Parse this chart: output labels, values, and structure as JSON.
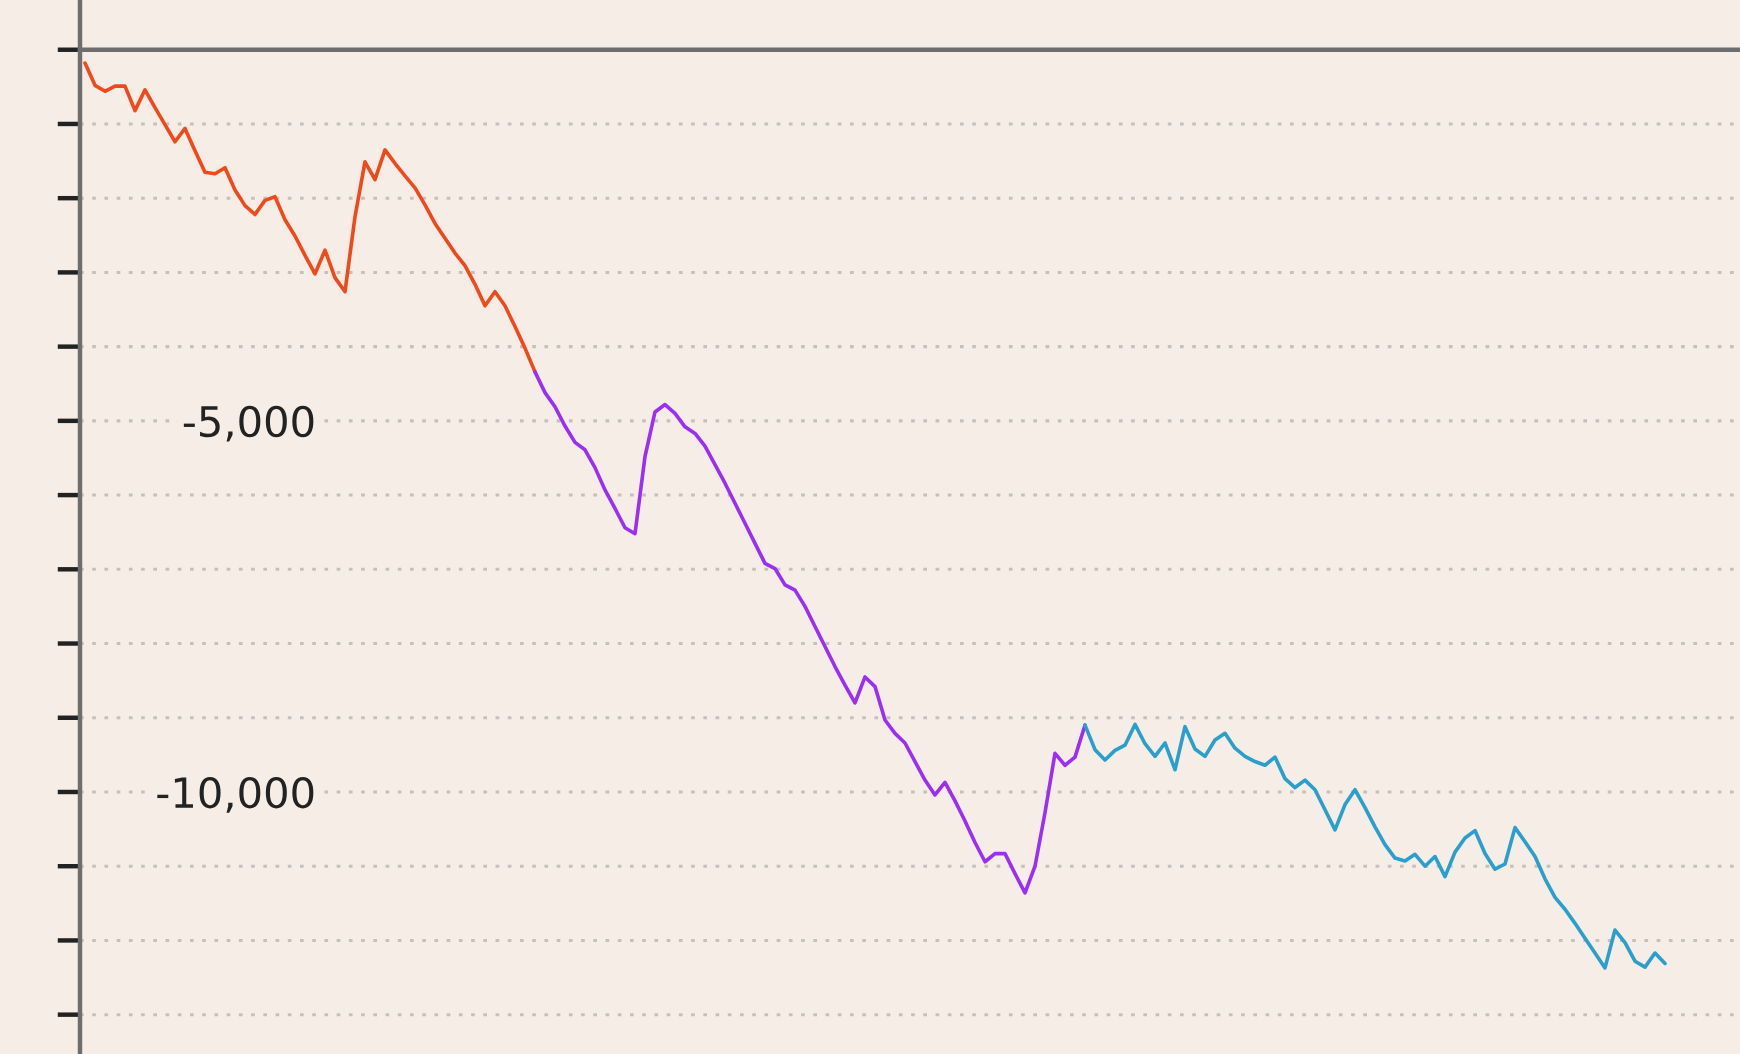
{
  "chart_data": {
    "type": "line",
    "categories": [
      null,
      null,
      null,
      null,
      null,
      null,
      null,
      null,
      null,
      null,
      null,
      null,
      null,
      null,
      null,
      null,
      null,
      null,
      null,
      null,
      null,
      null,
      null,
      null,
      null,
      null,
      null,
      null,
      null,
      null,
      null,
      null,
      null,
      null,
      null,
      null,
      null,
      null,
      null,
      null,
      null,
      null,
      null,
      null,
      null,
      null,
      null,
      null,
      null,
      null,
      null,
      null,
      null,
      null,
      null,
      null,
      null,
      null,
      null,
      null,
      null,
      null,
      null,
      null,
      null,
      null,
      null,
      null,
      null,
      null,
      null,
      null,
      null,
      null,
      null,
      null,
      null,
      null,
      null,
      null,
      null,
      null,
      null,
      null,
      null,
      null,
      null,
      null,
      null,
      null,
      null,
      null,
      null,
      null,
      null,
      null,
      null,
      null,
      null,
      null,
      null,
      null,
      null,
      null,
      null,
      null,
      null,
      null,
      null,
      null,
      null,
      null,
      null,
      null,
      null,
      null,
      null,
      null,
      null,
      null,
      null,
      null,
      null,
      null,
      null,
      null,
      null,
      null,
      null,
      null,
      null,
      null,
      null,
      null,
      null,
      null,
      null,
      null,
      null,
      null,
      null,
      null,
      null,
      null,
      null,
      null,
      null,
      null,
      null,
      null,
      null,
      null,
      null,
      null,
      null,
      null,
      null,
      null,
      null,
      null,
      null,
      null,
      null,
      null,
      null,
      null
    ],
    "series": [
      {
        "color": "#f04a1a",
        "values": [
          -180,
          -480,
          -560,
          -490,
          -490,
          -820,
          -540,
          -780,
          -1010,
          -1240,
          -1060,
          -1360,
          -1650,
          -1670,
          -1590,
          -1890,
          -2100,
          -2220,
          -2030,
          -1980,
          -2290,
          -2510,
          -2770,
          -3020,
          -2700,
          -3070,
          -3260,
          -2250,
          -1510,
          -1750,
          -1350,
          -1530,
          -1700,
          -1860,
          -2090,
          -2340,
          -2540,
          -2740,
          -2910,
          -3160,
          -3450,
          -3260,
          -3450,
          -3730,
          -4020,
          -4340,
          null,
          null,
          null,
          null,
          null,
          null,
          null,
          null,
          null,
          null,
          null,
          null,
          null,
          null,
          null,
          null,
          null,
          null,
          null,
          null,
          null,
          null,
          null,
          null,
          null,
          null,
          null,
          null,
          null,
          null,
          null,
          null,
          null,
          null,
          null,
          null,
          null,
          null,
          null,
          null,
          null,
          null,
          null,
          null,
          null,
          null,
          null,
          null,
          null,
          null,
          null,
          null,
          null,
          null,
          null,
          null,
          null,
          null,
          null,
          null,
          null,
          null,
          null,
          null,
          null,
          null,
          null,
          null,
          null,
          null,
          null,
          null,
          null,
          null,
          null,
          null,
          null,
          null,
          null,
          null,
          null,
          null,
          null,
          null,
          null,
          null,
          null,
          null,
          null,
          null,
          null,
          null,
          null,
          null,
          null,
          null,
          null,
          null,
          null,
          null,
          null,
          null,
          null,
          null,
          null,
          null,
          null,
          null,
          null,
          null,
          null,
          null,
          null,
          null,
          null,
          null,
          null,
          null,
          null,
          null
        ]
      },
      {
        "color": "#9b2ff2",
        "values": [
          null,
          null,
          null,
          null,
          null,
          null,
          null,
          null,
          null,
          null,
          null,
          null,
          null,
          null,
          null,
          null,
          null,
          null,
          null,
          null,
          null,
          null,
          null,
          null,
          null,
          null,
          null,
          null,
          null,
          null,
          null,
          null,
          null,
          null,
          null,
          null,
          null,
          null,
          null,
          null,
          null,
          null,
          null,
          null,
          null,
          -4340,
          -4620,
          -4810,
          -5070,
          -5290,
          -5390,
          -5630,
          -5930,
          -6180,
          -6440,
          -6520,
          -5480,
          -4880,
          -4780,
          -4900,
          -5080,
          -5170,
          -5340,
          -5590,
          -5840,
          -6110,
          -6380,
          -6650,
          -6920,
          -6990,
          -7210,
          -7280,
          -7500,
          -7770,
          -8040,
          -8310,
          -8560,
          -8800,
          -8450,
          -8580,
          -9030,
          -9210,
          -9340,
          -9590,
          -9840,
          -10040,
          -9870,
          -10120,
          -10390,
          -10680,
          -10940,
          -10830,
          -10830,
          -11100,
          -11360,
          -11000,
          -10280,
          -9480,
          -9640,
          -9530,
          -9100,
          null,
          null,
          null,
          null,
          null,
          null,
          null,
          null,
          null,
          null,
          null,
          null,
          null,
          null,
          null,
          null,
          null,
          null,
          null,
          null,
          null,
          null,
          null,
          null,
          null,
          null,
          null,
          null,
          null,
          null,
          null,
          null,
          null,
          null,
          null,
          null,
          null,
          null,
          null,
          null,
          null,
          null,
          null,
          null,
          null,
          null,
          null,
          null,
          null,
          null,
          null,
          null,
          null,
          null,
          null,
          null,
          null,
          null,
          null,
          null,
          null,
          null,
          null,
          null,
          null
        ]
      },
      {
        "color": "#2a9fcc",
        "values": [
          null,
          null,
          null,
          null,
          null,
          null,
          null,
          null,
          null,
          null,
          null,
          null,
          null,
          null,
          null,
          null,
          null,
          null,
          null,
          null,
          null,
          null,
          null,
          null,
          null,
          null,
          null,
          null,
          null,
          null,
          null,
          null,
          null,
          null,
          null,
          null,
          null,
          null,
          null,
          null,
          null,
          null,
          null,
          null,
          null,
          null,
          null,
          null,
          null,
          null,
          null,
          null,
          null,
          null,
          null,
          null,
          null,
          null,
          null,
          null,
          null,
          null,
          null,
          null,
          null,
          null,
          null,
          null,
          null,
          null,
          null,
          null,
          null,
          null,
          null,
          null,
          null,
          null,
          null,
          null,
          null,
          null,
          null,
          null,
          null,
          null,
          null,
          null,
          null,
          null,
          null,
          null,
          null,
          null,
          null,
          null,
          null,
          null,
          null,
          null,
          -9100,
          -9430,
          -9570,
          -9440,
          -9370,
          -9090,
          -9350,
          -9520,
          -9340,
          -9700,
          -9120,
          -9420,
          -9520,
          -9300,
          -9210,
          -9410,
          -9520,
          -9590,
          -9640,
          -9530,
          -9820,
          -9940,
          -9840,
          -9970,
          -10240,
          -10510,
          -10170,
          -9970,
          -10210,
          -10470,
          -10710,
          -10890,
          -10930,
          -10840,
          -11000,
          -10870,
          -11140,
          -10810,
          -10620,
          -10520,
          -10830,
          -11040,
          -10970,
          -10480,
          -10670,
          -10870,
          -11170,
          -11420,
          -11580,
          -11770,
          -11970,
          -12170,
          -12370,
          -11860,
          -12030,
          -12280,
          -12360,
          -12170,
          -12310,
          null,
          null,
          null,
          null,
          null,
          null,
          null
        ]
      }
    ],
    "ylim": [
      -13530,
      670
    ],
    "yticks": [
      {
        "value": 0,
        "label": null
      },
      {
        "value": -1000,
        "label": null
      },
      {
        "value": -2000,
        "label": null
      },
      {
        "value": -3000,
        "label": null
      },
      {
        "value": -4000,
        "label": null
      },
      {
        "value": -5000,
        "label": "-5,000"
      },
      {
        "value": -6000,
        "label": null
      },
      {
        "value": -7000,
        "label": null
      },
      {
        "value": -8000,
        "label": null
      },
      {
        "value": -9000,
        "label": null
      },
      {
        "value": -10000,
        "label": "-10,000"
      },
      {
        "value": -11000,
        "label": null
      },
      {
        "value": -12000,
        "label": null
      },
      {
        "value": -13000,
        "label": null
      }
    ],
    "grid": "y",
    "tick_labels": "y"
  }
}
